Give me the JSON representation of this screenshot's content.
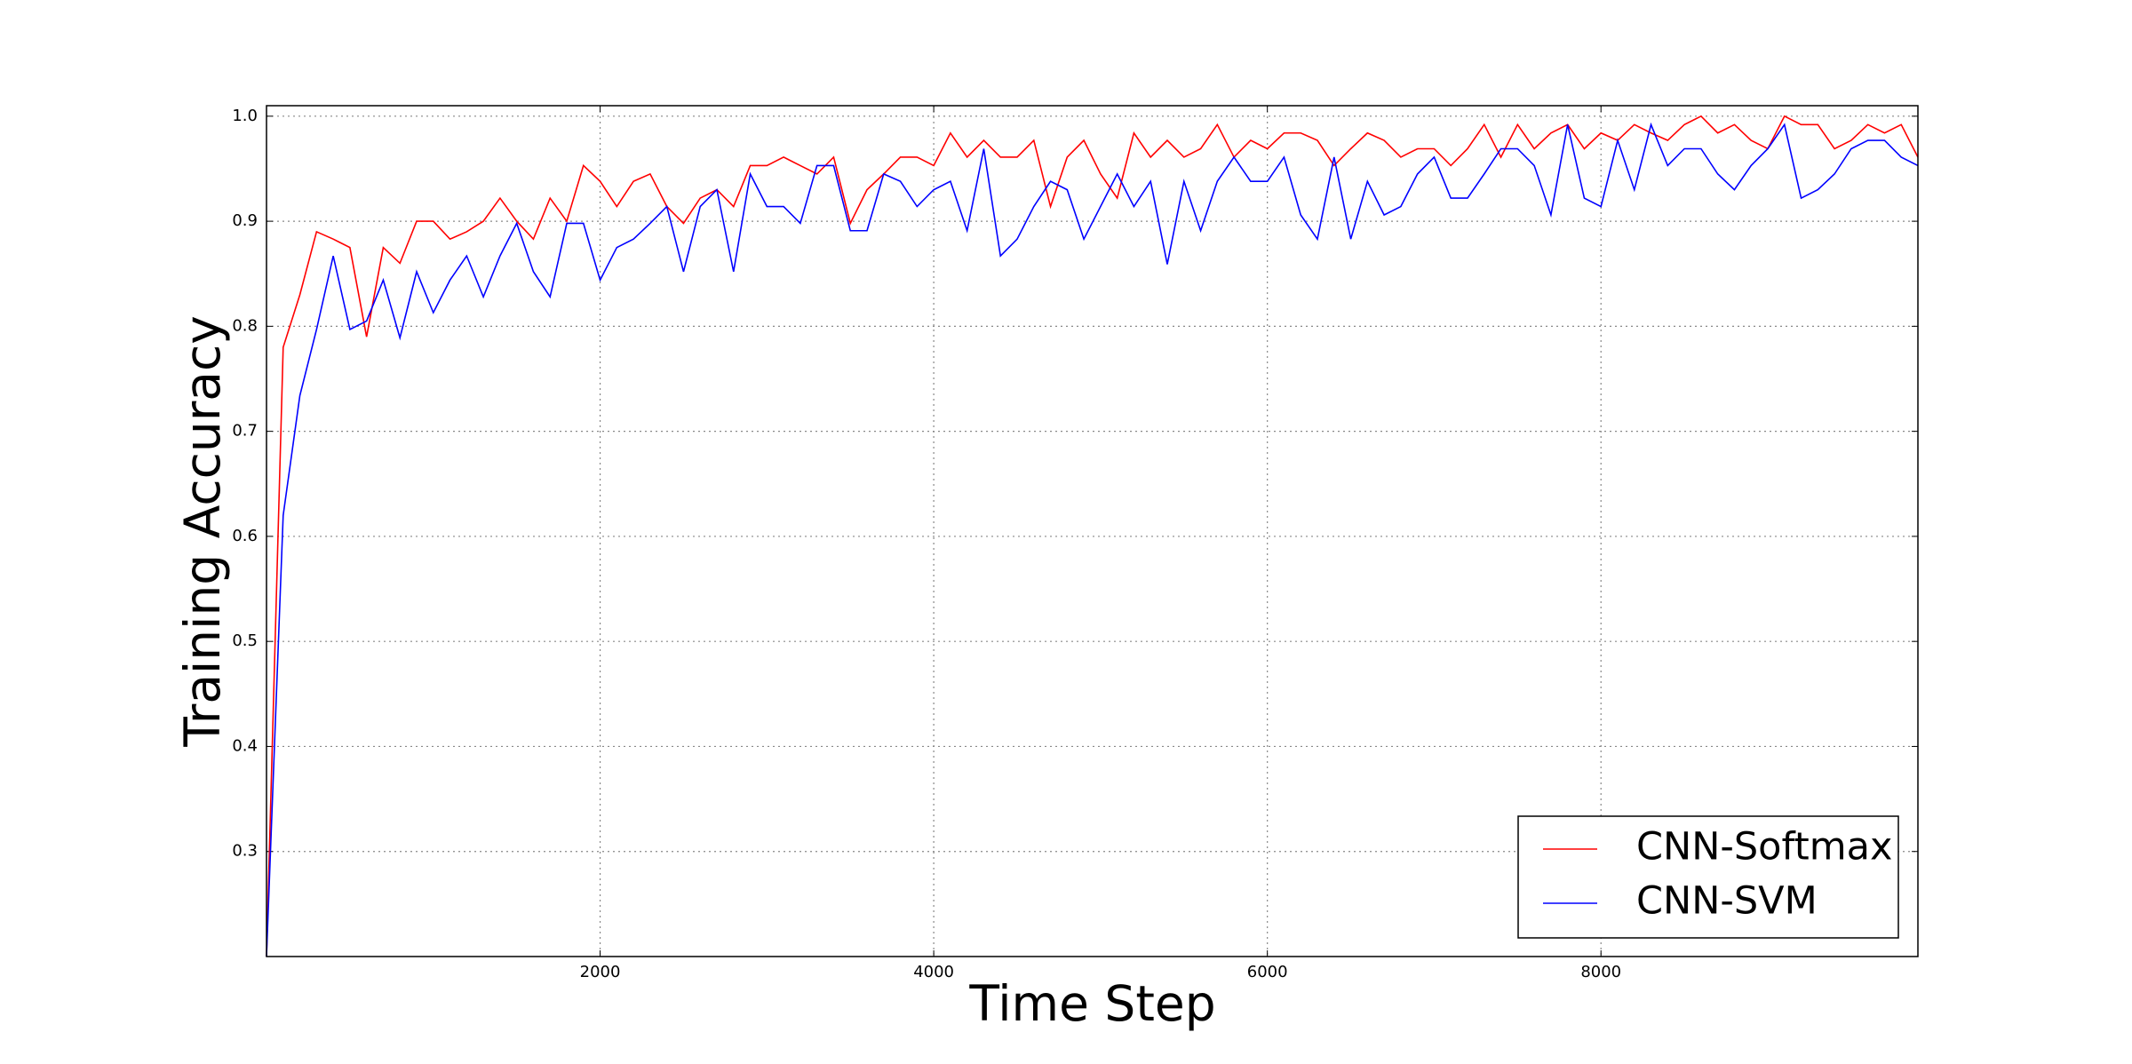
{
  "chart_data": {
    "type": "line",
    "xlabel": "Time Step",
    "ylabel": "Training Accuracy",
    "x": [
      0,
      100,
      200,
      300,
      400,
      500,
      600,
      700,
      800,
      900,
      1000,
      1100,
      1200,
      1300,
      1400,
      1500,
      1600,
      1700,
      1800,
      1900,
      2000,
      2100,
      2200,
      2300,
      2400,
      2500,
      2600,
      2700,
      2800,
      2900,
      3000,
      3100,
      3200,
      3300,
      3400,
      3500,
      3600,
      3700,
      3800,
      3900,
      4000,
      4100,
      4200,
      4300,
      4400,
      4500,
      4600,
      4700,
      4800,
      4900,
      5000,
      5100,
      5200,
      5300,
      5400,
      5500,
      5600,
      5700,
      5800,
      5900,
      6000,
      6100,
      6200,
      6300,
      6400,
      6500,
      6600,
      6700,
      6800,
      6900,
      7000,
      7100,
      7200,
      7300,
      7400,
      7500,
      7600,
      7700,
      7800,
      7900,
      8000,
      8100,
      8200,
      8300,
      8400,
      8500,
      8600,
      8700,
      8800,
      8900,
      9000,
      9100,
      9200,
      9300,
      9400,
      9500,
      9600,
      9700,
      9800,
      9900
    ],
    "series": [
      {
        "name": "CNN-Softmax",
        "color": "#ff0000",
        "values": [
          0.2,
          0.78,
          0.83,
          0.89,
          0.883,
          0.875,
          0.79,
          0.875,
          0.86,
          0.9,
          0.9,
          0.883,
          0.89,
          0.9,
          0.922,
          0.9,
          0.883,
          0.922,
          0.9,
          0.953,
          0.938,
          0.914,
          0.938,
          0.945,
          0.914,
          0.898,
          0.922,
          0.93,
          0.914,
          0.953,
          0.953,
          0.961,
          0.953,
          0.945,
          0.961,
          0.898,
          0.93,
          0.945,
          0.961,
          0.961,
          0.953,
          0.984,
          0.961,
          0.977,
          0.961,
          0.961,
          0.977,
          0.914,
          0.961,
          0.977,
          0.945,
          0.922,
          0.984,
          0.961,
          0.977,
          0.961,
          0.969,
          0.992,
          0.961,
          0.977,
          0.969,
          0.984,
          0.984,
          0.977,
          0.953,
          0.969,
          0.984,
          0.977,
          0.961,
          0.969,
          0.969,
          0.953,
          0.969,
          0.992,
          0.961,
          0.992,
          0.969,
          0.984,
          0.992,
          0.969,
          0.984,
          0.977,
          0.992,
          0.984,
          0.977,
          0.992,
          1.0,
          0.984,
          0.992,
          0.977,
          0.969,
          1.0,
          0.992,
          0.992,
          0.969,
          0.977,
          0.992,
          0.984,
          0.992,
          0.961
        ]
      },
      {
        "name": "CNN-SVM",
        "color": "#0000ff",
        "values": [
          0.2,
          0.62,
          0.734,
          0.797,
          0.867,
          0.797,
          0.805,
          0.844,
          0.789,
          0.852,
          0.813,
          0.844,
          0.867,
          0.828,
          0.867,
          0.898,
          0.852,
          0.828,
          0.898,
          0.898,
          0.844,
          0.875,
          0.883,
          0.898,
          0.914,
          0.852,
          0.914,
          0.93,
          0.852,
          0.945,
          0.914,
          0.914,
          0.898,
          0.953,
          0.953,
          0.891,
          0.891,
          0.945,
          0.938,
          0.914,
          0.93,
          0.938,
          0.891,
          0.969,
          0.867,
          0.883,
          0.914,
          0.938,
          0.93,
          0.883,
          0.914,
          0.945,
          0.914,
          0.938,
          0.859,
          0.938,
          0.891,
          0.938,
          0.961,
          0.938,
          0.938,
          0.961,
          0.906,
          0.883,
          0.961,
          0.883,
          0.938,
          0.906,
          0.914,
          0.945,
          0.961,
          0.922,
          0.922,
          0.945,
          0.969,
          0.969,
          0.953,
          0.906,
          0.992,
          0.922,
          0.914,
          0.977,
          0.93,
          0.992,
          0.953,
          0.969,
          0.969,
          0.945,
          0.93,
          0.953,
          0.969,
          0.992,
          0.922,
          0.93,
          0.945,
          0.969,
          0.977,
          0.977,
          0.961,
          0.953
        ]
      }
    ],
    "xlim": [
      0,
      9900
    ],
    "ylim": [
      0.2,
      1.01
    ],
    "xticks": [
      2000,
      4000,
      6000,
      8000
    ],
    "yticks": [
      0.3,
      0.4,
      0.5,
      0.6,
      0.7,
      0.8,
      0.9,
      {
        "value": 1.0,
        "label": "1.0"
      }
    ],
    "grid": true,
    "legend": "lower right"
  }
}
